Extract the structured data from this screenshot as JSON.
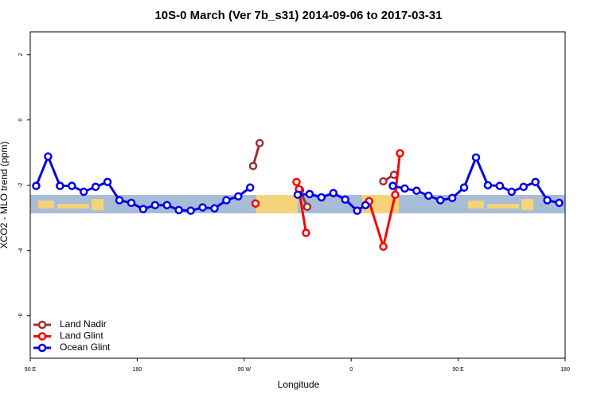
{
  "chart_data": {
    "type": "line",
    "title": "10S-0 March (Ver 7b_s31)   2014-09-06 to 2017-03-31",
    "x_label": "Longitude",
    "y_label": "XCO2 - MLO trend (ppm)",
    "xlim": [
      90,
      540
    ],
    "ylim": [
      -7.3,
      2.7
    ],
    "xticks": [
      {
        "value": 90,
        "label": "90 E"
      },
      180,
      {
        "value": 270,
        "label": "90 W"
      },
      {
        "value": 360,
        "label": "0"
      },
      {
        "value": 450,
        "label": "90 E"
      },
      {
        "value": 540,
        "label": "180"
      }
    ],
    "yticks": [
      2,
      0,
      -2,
      -4,
      -6
    ],
    "legend": "bottom-left",
    "series": [
      {
        "name": "Land Nadir",
        "color": "#993333",
        "x": [
          277.5,
          283,
          null,
          317,
          323,
          null,
          387,
          396
        ],
        "values": [
          -1.41,
          -0.71,
          null,
          -2.15,
          -2.66,
          null,
          -1.88,
          -1.68
        ]
      },
      {
        "name": "Land Glint",
        "color": "#ff0000",
        "x": [
          279.5,
          null,
          314,
          316,
          322,
          null,
          375,
          387,
          397,
          401
        ],
        "values": [
          -2.56,
          null,
          -1.9,
          -2.12,
          -3.46,
          null,
          -2.49,
          -3.88,
          -2.29,
          -1.02
        ]
      },
      {
        "name": "Ocean Glint",
        "color": "#0000ee",
        "x": [
          95,
          105,
          115,
          125,
          135,
          145,
          155,
          165,
          175,
          185,
          195,
          205,
          215,
          225,
          235,
          245,
          255,
          265,
          275,
          null,
          315,
          325,
          335,
          345,
          355,
          365,
          372,
          null,
          395,
          405,
          415,
          425,
          435,
          445,
          455,
          465,
          475,
          485,
          495,
          505,
          515,
          525,
          535
        ],
        "values": [
          -2.02,
          -1.12,
          -2.02,
          -2.02,
          -2.2,
          -2.05,
          -1.9,
          -2.46,
          -2.54,
          -2.73,
          -2.61,
          -2.61,
          -2.76,
          -2.78,
          -2.68,
          -2.71,
          -2.46,
          -2.34,
          -2.07,
          null,
          -2.29,
          -2.27,
          -2.37,
          -2.24,
          -2.44,
          -2.78,
          -2.61,
          null,
          -2.02,
          -2.1,
          -2.17,
          -2.32,
          -2.46,
          -2.39,
          -2.07,
          -1.15,
          -2.0,
          -2.02,
          -2.2,
          -2.05,
          -1.9,
          -2.46,
          -2.54
        ]
      }
    ]
  }
}
